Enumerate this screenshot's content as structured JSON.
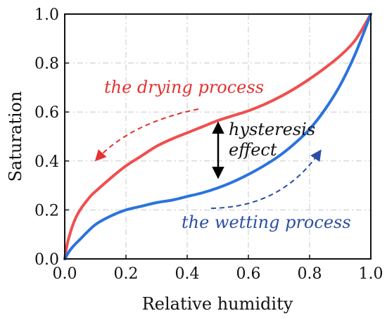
{
  "chart_data": {
    "type": "line",
    "xlabel": "Relative humidity",
    "ylabel": "Saturation",
    "xlim": [
      0.0,
      1.0
    ],
    "ylim": [
      0.0,
      1.0
    ],
    "xticks": [
      "0.0",
      "0.2",
      "0.4",
      "0.6",
      "0.8",
      "1.0"
    ],
    "yticks": [
      "0.0",
      "0.2",
      "0.4",
      "0.6",
      "0.8",
      "1.0"
    ],
    "grid": true,
    "series": [
      {
        "color": "#f04545",
        "x": [
          0.0,
          0.01,
          0.03,
          0.05,
          0.08,
          0.1,
          0.15,
          0.2,
          0.25,
          0.3,
          0.35,
          0.4,
          0.45,
          0.5,
          0.55,
          0.6,
          0.65,
          0.7,
          0.75,
          0.8,
          0.85,
          0.9,
          0.95,
          1.0
        ],
        "y": [
          0.0,
          0.07,
          0.15,
          0.2,
          0.25,
          0.275,
          0.33,
          0.38,
          0.42,
          0.46,
          0.49,
          0.515,
          0.54,
          0.565,
          0.585,
          0.605,
          0.63,
          0.66,
          0.695,
          0.735,
          0.78,
          0.83,
          0.895,
          1.0
        ]
      },
      {
        "color": "#2a73de",
        "x": [
          0.0,
          0.02,
          0.05,
          0.1,
          0.15,
          0.2,
          0.25,
          0.3,
          0.35,
          0.4,
          0.45,
          0.5,
          0.55,
          0.6,
          0.65,
          0.7,
          0.75,
          0.8,
          0.85,
          0.9,
          0.95,
          1.0
        ],
        "y": [
          0.0,
          0.04,
          0.08,
          0.14,
          0.175,
          0.2,
          0.215,
          0.23,
          0.24,
          0.255,
          0.27,
          0.29,
          0.315,
          0.345,
          0.38,
          0.42,
          0.47,
          0.53,
          0.61,
          0.71,
          0.84,
          1.0
        ]
      }
    ],
    "annotations": [
      {
        "text": "the drying process",
        "color": "#e53131"
      },
      {
        "text": "hysteresis",
        "color": "#111111"
      },
      {
        "text": "effect",
        "color": "#111111"
      },
      {
        "text": "the wetting process",
        "color": "#2b4ea3"
      }
    ]
  }
}
